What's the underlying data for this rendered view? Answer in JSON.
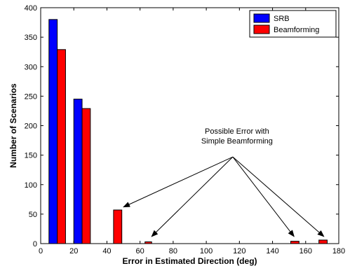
{
  "chart_data": {
    "type": "bar",
    "title": "",
    "xlabel": "Error in Estimated Direction (deg)",
    "ylabel": "Number of Scenarios",
    "xlim": [
      0,
      180
    ],
    "ylim": [
      0,
      400
    ],
    "xticks": [
      0,
      20,
      40,
      60,
      80,
      100,
      120,
      140,
      160,
      180
    ],
    "yticks": [
      0,
      50,
      100,
      150,
      200,
      250,
      300,
      350,
      400
    ],
    "grid": false,
    "legend": "top-right",
    "series": [
      {
        "name": "SRB",
        "color": "#0000ff",
        "bars": [
          {
            "x0": 5,
            "x1": 10,
            "value": 380
          },
          {
            "x0": 20,
            "x1": 25,
            "value": 245
          }
        ]
      },
      {
        "name": "Beamforming",
        "color": "#ff0000",
        "bars": [
          {
            "x0": 10,
            "x1": 15,
            "value": 329
          },
          {
            "x0": 25,
            "x1": 30,
            "value": 229
          },
          {
            "x0": 44,
            "x1": 49,
            "value": 57
          },
          {
            "x0": 63,
            "x1": 67,
            "value": 3
          },
          {
            "x0": 151,
            "x1": 156,
            "value": 4
          },
          {
            "x0": 168,
            "x1": 173,
            "value": 6
          }
        ]
      }
    ],
    "annotation": {
      "lines": [
        "Possible Error with",
        "Simple Beamforming"
      ],
      "origin": {
        "x": 116,
        "y": 147
      },
      "targets": [
        {
          "x": 50,
          "y": 62
        },
        {
          "x": 67,
          "y": 12
        },
        {
          "x": 153,
          "y": 12
        },
        {
          "x": 171,
          "y": 12
        }
      ]
    }
  }
}
